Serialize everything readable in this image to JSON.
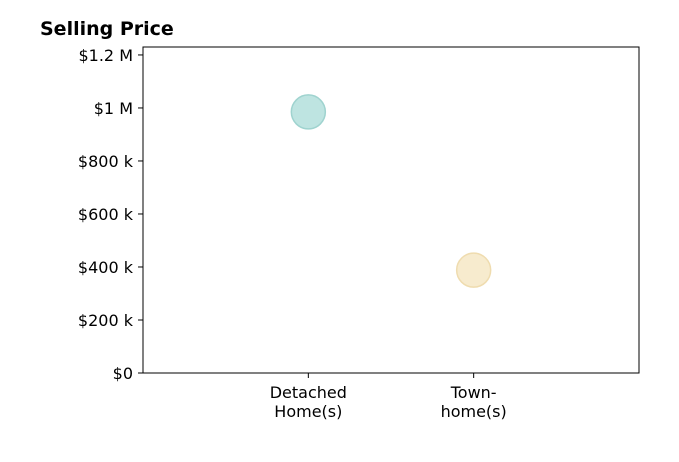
{
  "chart_data": {
    "type": "scatter",
    "title": "Selling Price",
    "xlabel": "",
    "ylabel": "",
    "categories": [
      [
        "Detached",
        "Home(s)"
      ],
      [
        "Town-",
        "home(s)"
      ]
    ],
    "values": [
      985000,
      388000
    ],
    "point_colors": [
      "#b3dfdc",
      "#f6e7c5"
    ],
    "point_edge_colors": [
      "#9fd3cf",
      "#efdcaf"
    ],
    "ylim": [
      0,
      1230000
    ],
    "yticks": [
      0,
      200000,
      400000,
      600000,
      800000,
      1000000,
      1200000
    ],
    "ytick_labels": [
      "$0",
      "$200 k",
      "$400 k",
      "$600 k",
      "$800 k",
      "$1 M",
      "$1.2 M"
    ],
    "grid": false,
    "legend": "none"
  }
}
